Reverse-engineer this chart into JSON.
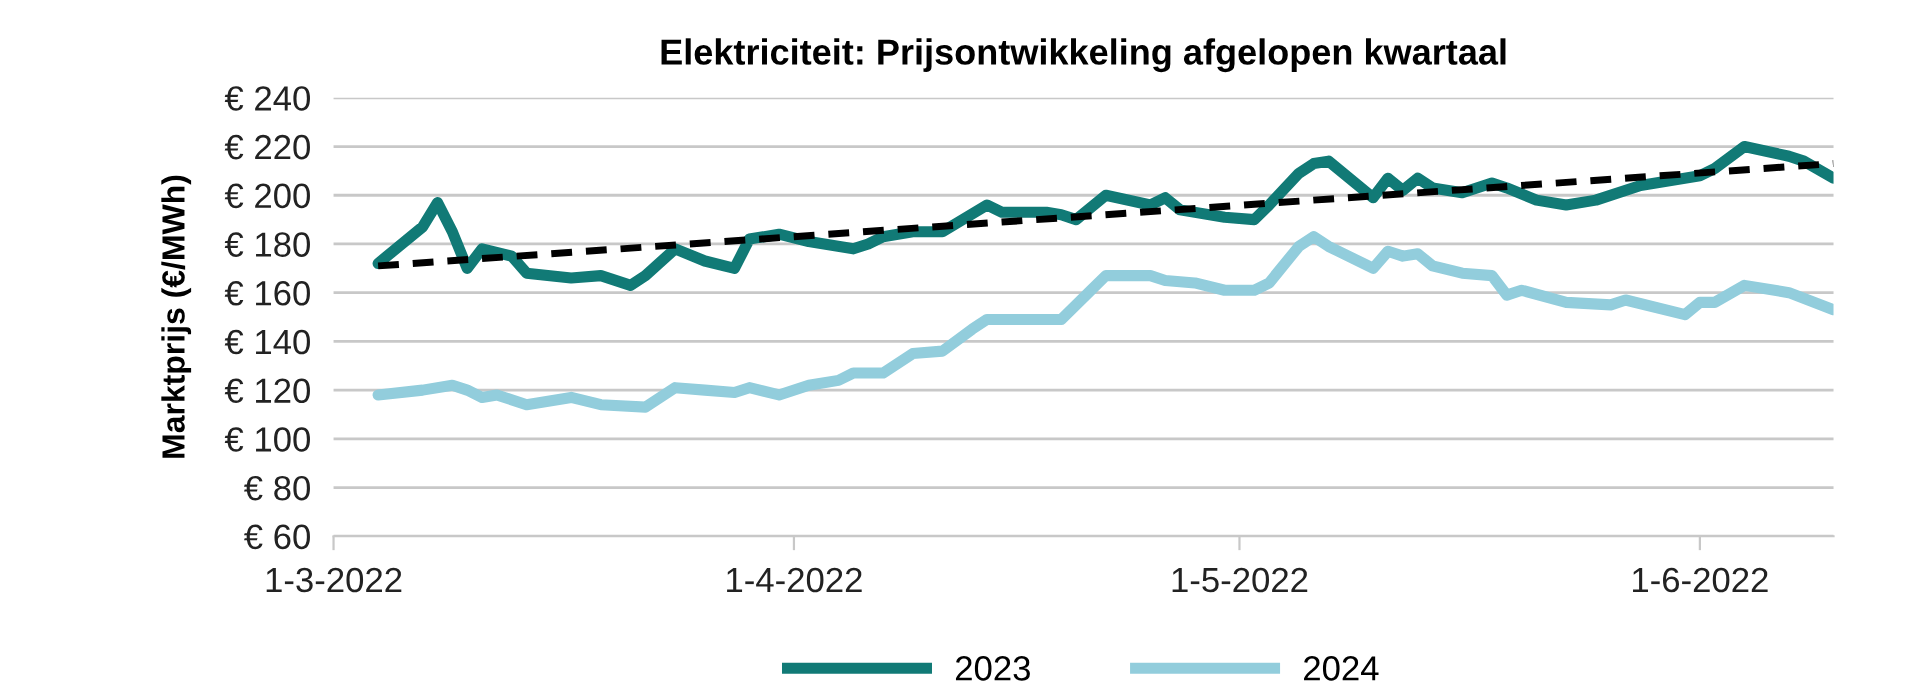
{
  "chart_data": {
    "type": "line",
    "title": "Elektriciteit: Prijsontwikkeling afgelopen kwartaal",
    "ylabel": "Marktprijs (€/MWh)",
    "xlim": [
      "2022-03-01",
      "2022-06-10"
    ],
    "xticks": [
      {
        "value": "2022-03-01",
        "label": "1-3-2022"
      },
      {
        "value": "2022-04-01",
        "label": "1-4-2022"
      },
      {
        "value": "2022-05-01",
        "label": "1-5-2022"
      },
      {
        "value": "2022-06-01",
        "label": "1-6-2022"
      }
    ],
    "ylim": [
      60,
      240
    ],
    "yticks": [
      {
        "value": 60,
        "label": "€ 60"
      },
      {
        "value": 80,
        "label": "€ 80"
      },
      {
        "value": 100,
        "label": "€ 100"
      },
      {
        "value": 120,
        "label": "€ 120"
      },
      {
        "value": 140,
        "label": "€ 140"
      },
      {
        "value": 160,
        "label": "€ 160"
      },
      {
        "value": 180,
        "label": "€ 180"
      },
      {
        "value": 200,
        "label": "€ 200"
      },
      {
        "value": 220,
        "label": "€ 220"
      },
      {
        "value": 240,
        "label": "€ 240"
      }
    ],
    "grid": "y",
    "legend": "bottom",
    "marker": "none",
    "series": [
      {
        "name": "2023",
        "color": "#117a76",
        "line_style": "solid",
        "x": [
          "2022-03-04",
          "2022-03-07",
          "2022-03-08",
          "2022-03-09",
          "2022-03-10",
          "2022-03-11",
          "2022-03-13",
          "2022-03-14",
          "2022-03-17",
          "2022-03-19",
          "2022-03-21",
          "2022-03-22",
          "2022-03-24",
          "2022-03-26",
          "2022-03-28",
          "2022-03-29",
          "2022-03-31",
          "2022-04-02",
          "2022-04-05",
          "2022-04-06",
          "2022-04-07",
          "2022-04-09",
          "2022-04-11",
          "2022-04-14",
          "2022-04-15",
          "2022-04-18",
          "2022-04-19",
          "2022-04-20",
          "2022-04-22",
          "2022-04-25",
          "2022-04-26",
          "2022-04-27",
          "2022-04-30",
          "2022-05-02",
          "2022-05-03",
          "2022-05-05",
          "2022-05-06",
          "2022-05-07",
          "2022-05-10",
          "2022-05-11",
          "2022-05-12",
          "2022-05-13",
          "2022-05-14",
          "2022-05-16",
          "2022-05-18",
          "2022-05-19",
          "2022-05-21",
          "2022-05-23",
          "2022-05-25",
          "2022-05-28",
          "2022-06-01",
          "2022-06-02",
          "2022-06-04",
          "2022-06-07",
          "2022-06-08",
          "2022-06-10"
        ],
        "values": [
          172,
          187,
          197,
          185,
          170,
          178,
          175,
          168,
          166,
          167,
          163,
          167,
          178,
          173,
          170,
          182,
          184,
          181,
          178,
          180,
          183,
          185,
          185,
          196,
          193,
          193,
          192,
          190,
          200,
          196,
          199,
          194,
          191,
          190,
          196,
          209,
          213,
          214,
          199,
          207,
          202,
          207,
          203,
          201,
          205,
          203,
          198,
          196,
          198,
          204,
          208,
          211,
          220,
          216,
          214,
          207
        ]
      },
      {
        "name": "2024",
        "color": "#92cddc",
        "line_style": "solid",
        "x": [
          "2022-03-04",
          "2022-03-07",
          "2022-03-09",
          "2022-03-10",
          "2022-03-11",
          "2022-03-12",
          "2022-03-14",
          "2022-03-17",
          "2022-03-19",
          "2022-03-22",
          "2022-03-24",
          "2022-03-26",
          "2022-03-28",
          "2022-03-29",
          "2022-03-31",
          "2022-04-02",
          "2022-04-04",
          "2022-04-05",
          "2022-04-07",
          "2022-04-09",
          "2022-04-11",
          "2022-04-13",
          "2022-04-14",
          "2022-04-18",
          "2022-04-19",
          "2022-04-21",
          "2022-04-22",
          "2022-04-25",
          "2022-04-26",
          "2022-04-28",
          "2022-04-30",
          "2022-05-02",
          "2022-05-03",
          "2022-05-05",
          "2022-05-06",
          "2022-05-07",
          "2022-05-10",
          "2022-05-11",
          "2022-05-12",
          "2022-05-13",
          "2022-05-14",
          "2022-05-16",
          "2022-05-18",
          "2022-05-19",
          "2022-05-20",
          "2022-05-23",
          "2022-05-26",
          "2022-05-27",
          "2022-05-31",
          "2022-06-01",
          "2022-06-02",
          "2022-06-04",
          "2022-06-07",
          "2022-06-10"
        ],
        "values": [
          118,
          120,
          122,
          120,
          117,
          118,
          114,
          117,
          114,
          113,
          121,
          120,
          119,
          121,
          118,
          122,
          124,
          127,
          127,
          135,
          136,
          145,
          149,
          149,
          149,
          161,
          167,
          167,
          165,
          164,
          161,
          161,
          164,
          179,
          183,
          179,
          170,
          177,
          175,
          176,
          171,
          168,
          167,
          159,
          161,
          156,
          155,
          157,
          151,
          156,
          156,
          163,
          160,
          153
        ]
      },
      {
        "type": "line",
        "color": "#000000",
        "line_style": "dashed",
        "x": [
          "2022-03-04",
          "2022-06-10"
        ],
        "values": [
          171,
          213
        ]
      }
    ]
  }
}
